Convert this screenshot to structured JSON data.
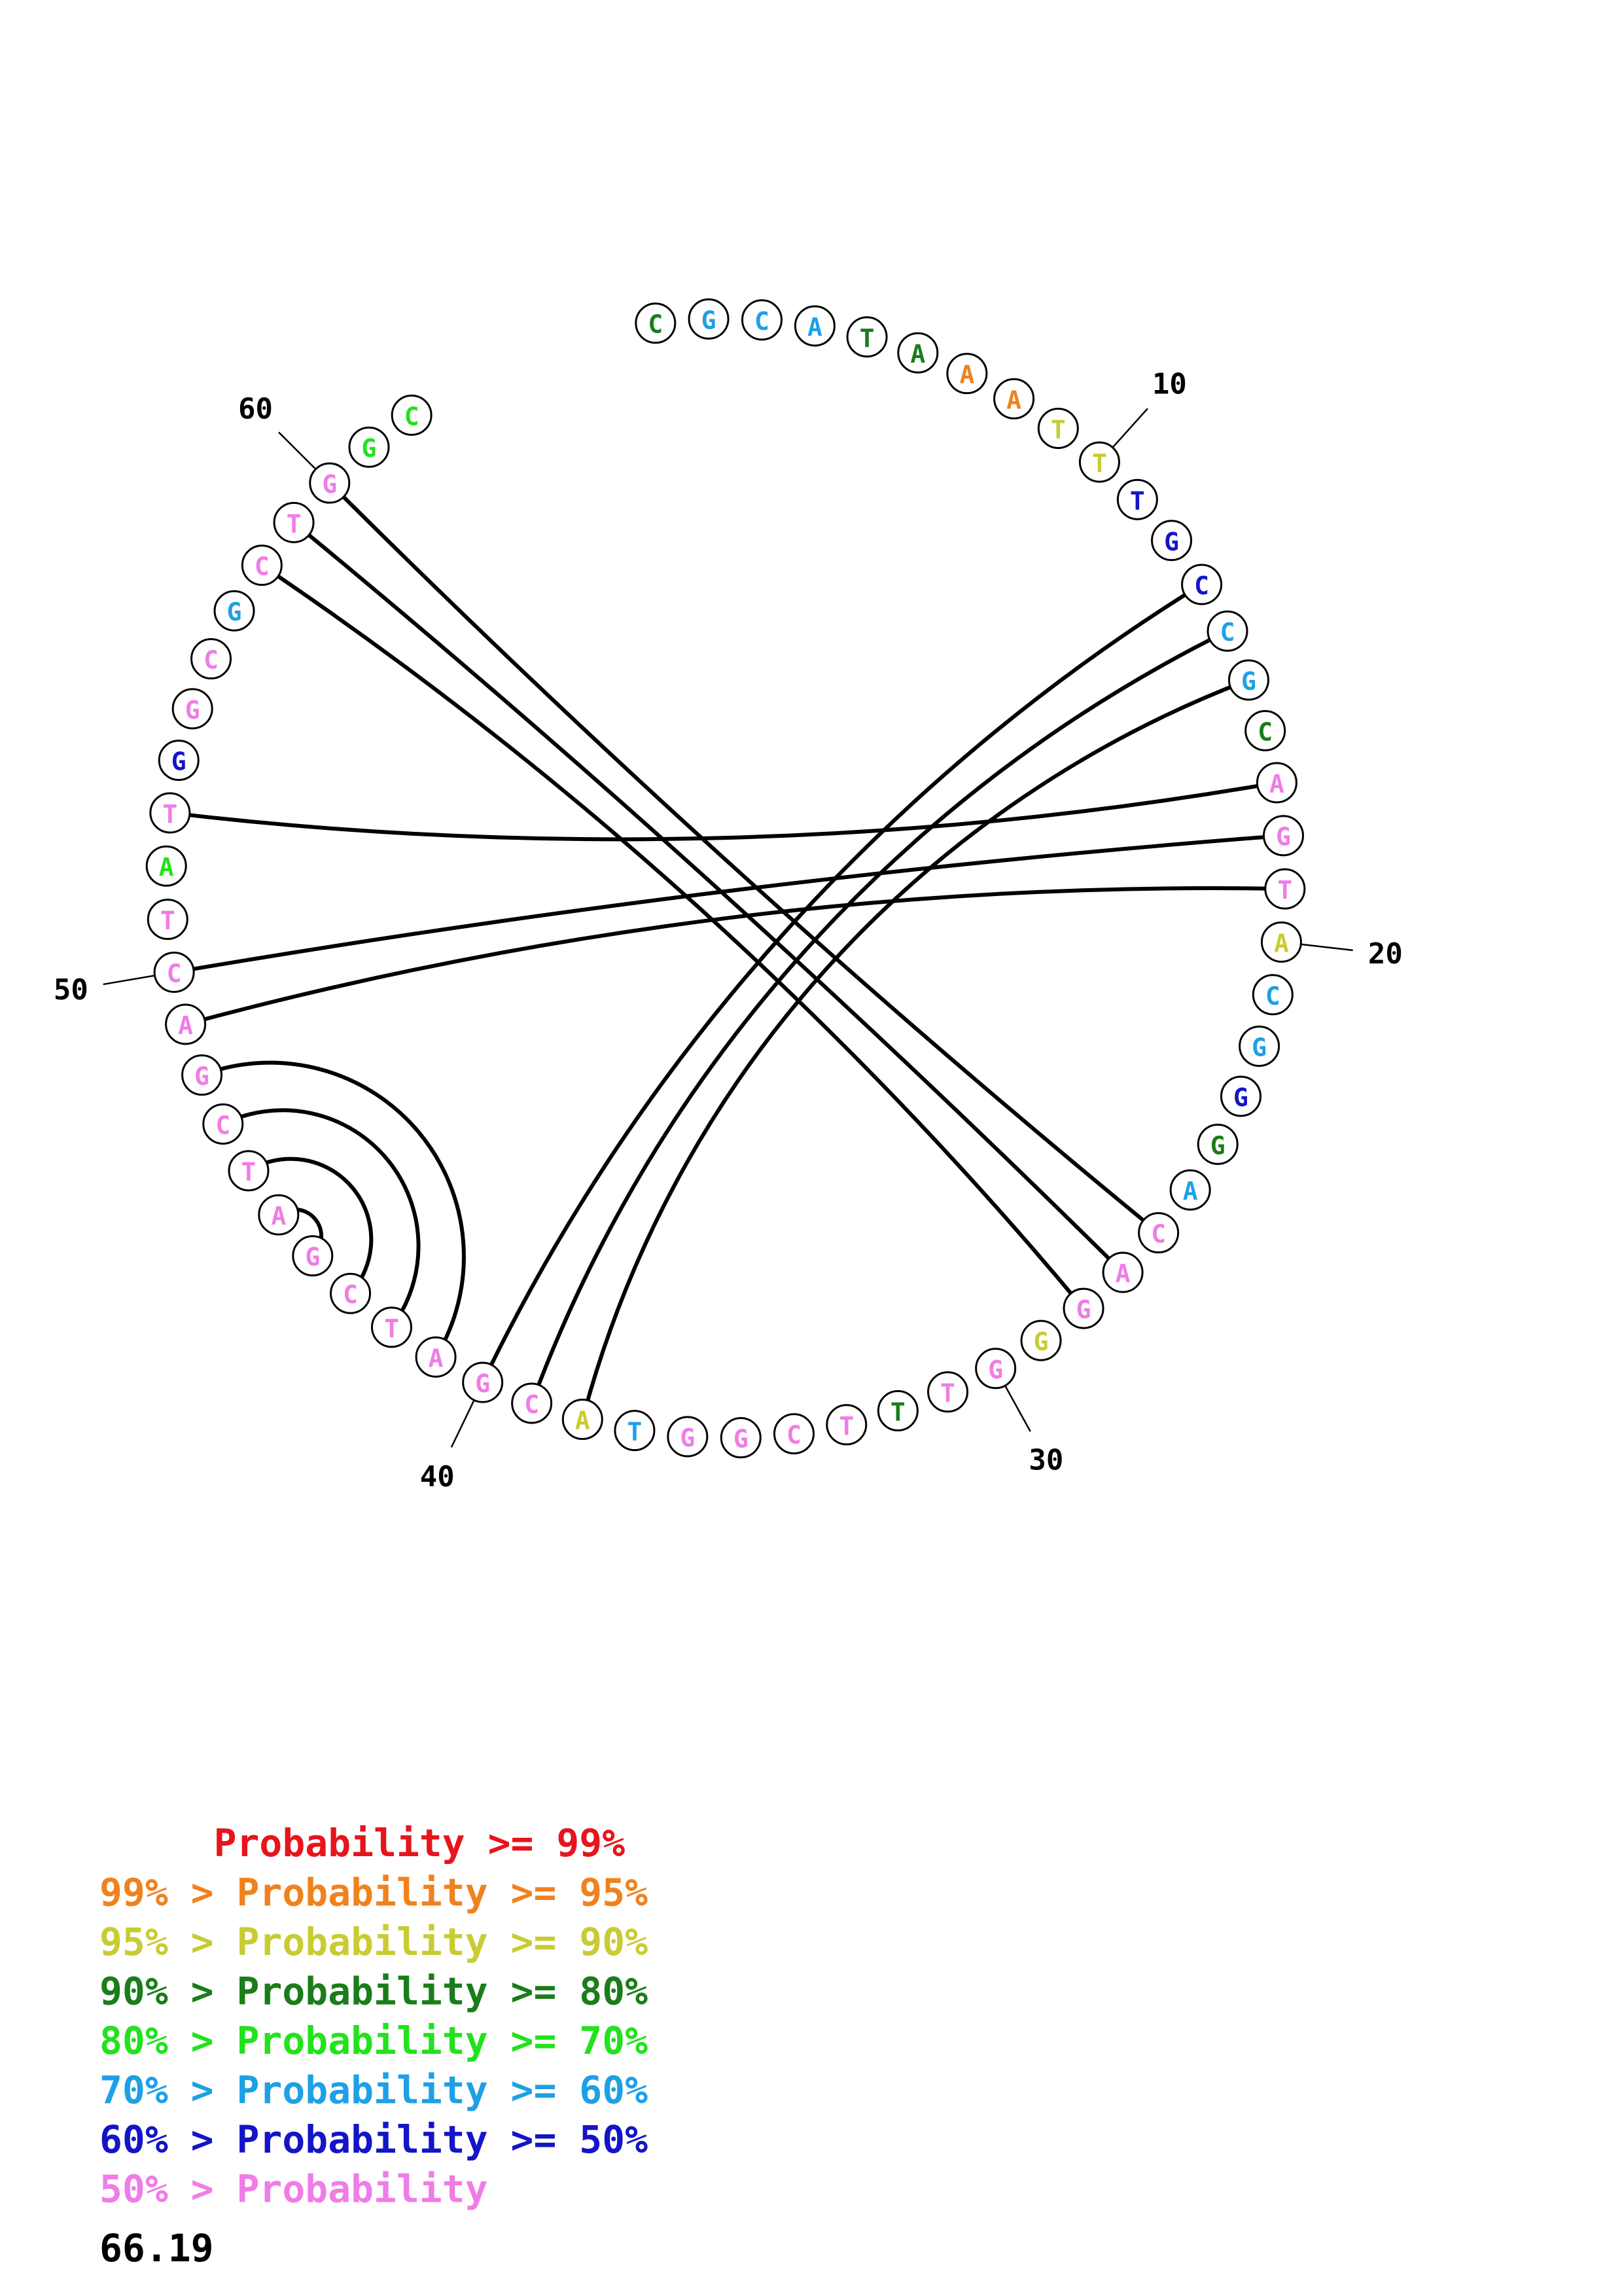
{
  "colors": {
    "c99": "#e8141c",
    "c95": "#f0821e",
    "c90": "#c8cc32",
    "c80": "#1a7d1a",
    "c70": "#22e21c",
    "c60": "#1ea0e6",
    "c50": "#1414c8",
    "clow": "#f07ce6"
  },
  "sequence": [
    {
      "n": 1,
      "base": "C",
      "color": "c80"
    },
    {
      "n": 2,
      "base": "G",
      "color": "c60"
    },
    {
      "n": 3,
      "base": "C",
      "color": "c60"
    },
    {
      "n": 4,
      "base": "A",
      "color": "c60"
    },
    {
      "n": 5,
      "base": "T",
      "color": "c80"
    },
    {
      "n": 6,
      "base": "A",
      "color": "c80"
    },
    {
      "n": 7,
      "base": "A",
      "color": "c95"
    },
    {
      "n": 8,
      "base": "A",
      "color": "c95"
    },
    {
      "n": 9,
      "base": "T",
      "color": "c90"
    },
    {
      "n": 10,
      "base": "T",
      "color": "c90"
    },
    {
      "n": 11,
      "base": "T",
      "color": "c50"
    },
    {
      "n": 12,
      "base": "G",
      "color": "c50"
    },
    {
      "n": 13,
      "base": "C",
      "color": "c50"
    },
    {
      "n": 14,
      "base": "C",
      "color": "c60"
    },
    {
      "n": 15,
      "base": "G",
      "color": "c60"
    },
    {
      "n": 16,
      "base": "C",
      "color": "c80"
    },
    {
      "n": 17,
      "base": "A",
      "color": "clow"
    },
    {
      "n": 18,
      "base": "G",
      "color": "clow"
    },
    {
      "n": 19,
      "base": "T",
      "color": "clow"
    },
    {
      "n": 20,
      "base": "A",
      "color": "c90"
    },
    {
      "n": 21,
      "base": "C",
      "color": "c60"
    },
    {
      "n": 22,
      "base": "G",
      "color": "c60"
    },
    {
      "n": 23,
      "base": "G",
      "color": "c50"
    },
    {
      "n": 24,
      "base": "G",
      "color": "c80"
    },
    {
      "n": 25,
      "base": "A",
      "color": "c60"
    },
    {
      "n": 26,
      "base": "C",
      "color": "clow"
    },
    {
      "n": 27,
      "base": "A",
      "color": "clow"
    },
    {
      "n": 28,
      "base": "G",
      "color": "clow"
    },
    {
      "n": 29,
      "base": "G",
      "color": "c90"
    },
    {
      "n": 30,
      "base": "G",
      "color": "clow"
    },
    {
      "n": 31,
      "base": "T",
      "color": "clow"
    },
    {
      "n": 32,
      "base": "T",
      "color": "c80"
    },
    {
      "n": 33,
      "base": "T",
      "color": "clow"
    },
    {
      "n": 34,
      "base": "C",
      "color": "clow"
    },
    {
      "n": 35,
      "base": "G",
      "color": "clow"
    },
    {
      "n": 36,
      "base": "G",
      "color": "clow"
    },
    {
      "n": 37,
      "base": "T",
      "color": "c60"
    },
    {
      "n": 38,
      "base": "A",
      "color": "c90"
    },
    {
      "n": 39,
      "base": "C",
      "color": "clow"
    },
    {
      "n": 40,
      "base": "G",
      "color": "clow"
    },
    {
      "n": 41,
      "base": "A",
      "color": "clow"
    },
    {
      "n": 42,
      "base": "T",
      "color": "clow"
    },
    {
      "n": 43,
      "base": "C",
      "color": "clow"
    },
    {
      "n": 44,
      "base": "G",
      "color": "clow"
    },
    {
      "n": 45,
      "base": "A",
      "color": "clow"
    },
    {
      "n": 46,
      "base": "T",
      "color": "clow"
    },
    {
      "n": 47,
      "base": "C",
      "color": "clow"
    },
    {
      "n": 48,
      "base": "G",
      "color": "clow"
    },
    {
      "n": 49,
      "base": "A",
      "color": "clow"
    },
    {
      "n": 50,
      "base": "C",
      "color": "clow"
    },
    {
      "n": 51,
      "base": "T",
      "color": "clow"
    },
    {
      "n": 52,
      "base": "A",
      "color": "c70"
    },
    {
      "n": 53,
      "base": "T",
      "color": "clow"
    },
    {
      "n": 54,
      "base": "G",
      "color": "c50"
    },
    {
      "n": 55,
      "base": "G",
      "color": "clow"
    },
    {
      "n": 56,
      "base": "C",
      "color": "clow"
    },
    {
      "n": 57,
      "base": "G",
      "color": "c60"
    },
    {
      "n": 58,
      "base": "C",
      "color": "clow"
    },
    {
      "n": 59,
      "base": "T",
      "color": "clow"
    },
    {
      "n": 60,
      "base": "G",
      "color": "clow"
    },
    {
      "n": 61,
      "base": "G",
      "color": "c70"
    },
    {
      "n": 62,
      "base": "C",
      "color": "c70"
    }
  ],
  "pairs": [
    [
      13,
      40
    ],
    [
      14,
      39
    ],
    [
      15,
      38
    ],
    [
      17,
      53
    ],
    [
      18,
      50
    ],
    [
      19,
      49
    ],
    [
      26,
      60
    ],
    [
      27,
      59
    ],
    [
      28,
      58
    ],
    [
      41,
      48
    ],
    [
      42,
      47
    ],
    [
      43,
      46
    ],
    [
      44,
      45
    ]
  ],
  "position_labels": [
    {
      "n": 10,
      "text": "10"
    },
    {
      "n": 20,
      "text": "20"
    },
    {
      "n": 30,
      "text": "30"
    },
    {
      "n": 40,
      "text": "40"
    },
    {
      "n": 50,
      "text": "50"
    },
    {
      "n": 60,
      "text": "60"
    }
  ],
  "legend": [
    {
      "text": "     Probability >= 99%",
      "color": "c99"
    },
    {
      "text": "99% > Probability >= 95%",
      "color": "c95"
    },
    {
      "text": "95% > Probability >= 90%",
      "color": "c90"
    },
    {
      "text": "90% > Probability >= 80%",
      "color": "c80"
    },
    {
      "text": "80% > Probability >= 70%",
      "color": "c70"
    },
    {
      "text": "70% > Probability >= 60%",
      "color": "c60"
    },
    {
      "text": "60% > Probability >= 50%",
      "color": "c50"
    },
    {
      "text": "50% > Probability",
      "color": "clow"
    }
  ],
  "energy_value": "66.19"
}
